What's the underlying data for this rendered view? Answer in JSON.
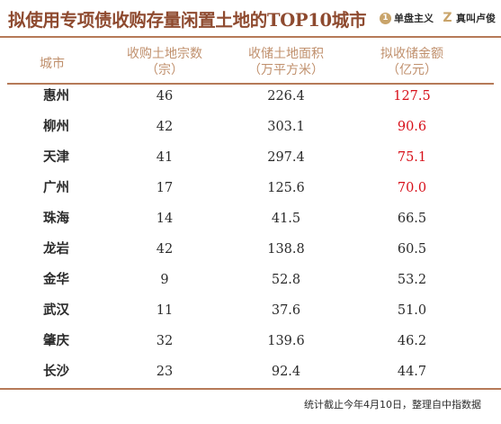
{
  "title": "拟使用专项债收购存量闲置土地的TOP10城市",
  "logos": [
    {
      "mark": "1",
      "text": "单盘主义"
    },
    {
      "mark": "Z",
      "text": "真叫卢俊"
    }
  ],
  "columns": {
    "city": "城市",
    "count": [
      "收购土地宗数",
      "（宗）"
    ],
    "area": [
      "收储土地面积",
      "（万平方米）"
    ],
    "amount": [
      "拟收储金额",
      "（亿元）"
    ]
  },
  "rows": [
    {
      "city": "惠州",
      "count": "46",
      "area": "226.4",
      "amount": "127.5"
    },
    {
      "city": "柳州",
      "count": "42",
      "area": "303.1",
      "amount": "90.6"
    },
    {
      "city": "天津",
      "count": "41",
      "area": "297.4",
      "amount": "75.1"
    },
    {
      "city": "广州",
      "count": "17",
      "area": "125.6",
      "amount": "70.0"
    },
    {
      "city": "珠海",
      "count": "14",
      "area": "41.5",
      "amount": "66.5"
    },
    {
      "city": "龙岩",
      "count": "42",
      "area": "138.8",
      "amount": "60.5"
    },
    {
      "city": "金华",
      "count": "9",
      "area": "52.8",
      "amount": "53.2"
    },
    {
      "city": "武汉",
      "count": "11",
      "area": "37.6",
      "amount": "51.0"
    },
    {
      "city": "肇庆",
      "count": "32",
      "area": "139.6",
      "amount": "46.2"
    },
    {
      "city": "长沙",
      "count": "23",
      "area": "92.4",
      "amount": "44.7"
    }
  ],
  "highlight_color": "#d7101a",
  "accent_color": "#8e4a2f",
  "footnote": "统计截止今年4月10日，整理自中指数据"
}
